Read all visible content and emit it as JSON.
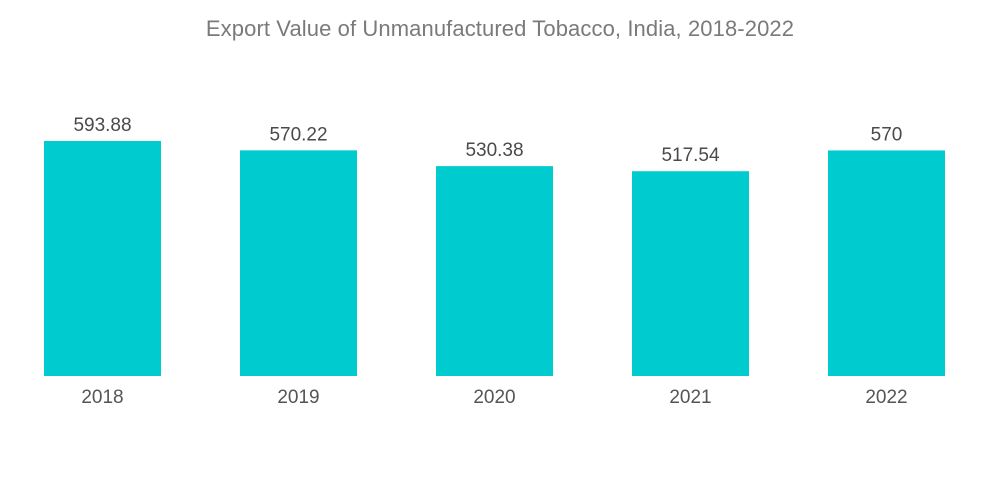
{
  "chart_data": {
    "type": "bar",
    "title": "Export Value of Unmanufactured Tobacco, India, 2018-2022",
    "categories": [
      "2018",
      "2019",
      "2020",
      "2021",
      "2022"
    ],
    "values": [
      593.88,
      570.22,
      530.38,
      517.54,
      570
    ],
    "value_labels": [
      "593.88",
      "570.22",
      "530.38",
      "517.54",
      "570"
    ],
    "xlabel": "",
    "ylabel": "",
    "ylim": [
      0,
      593.88
    ],
    "grid": false,
    "legend": "none",
    "bar_color": "#00ccd0"
  }
}
